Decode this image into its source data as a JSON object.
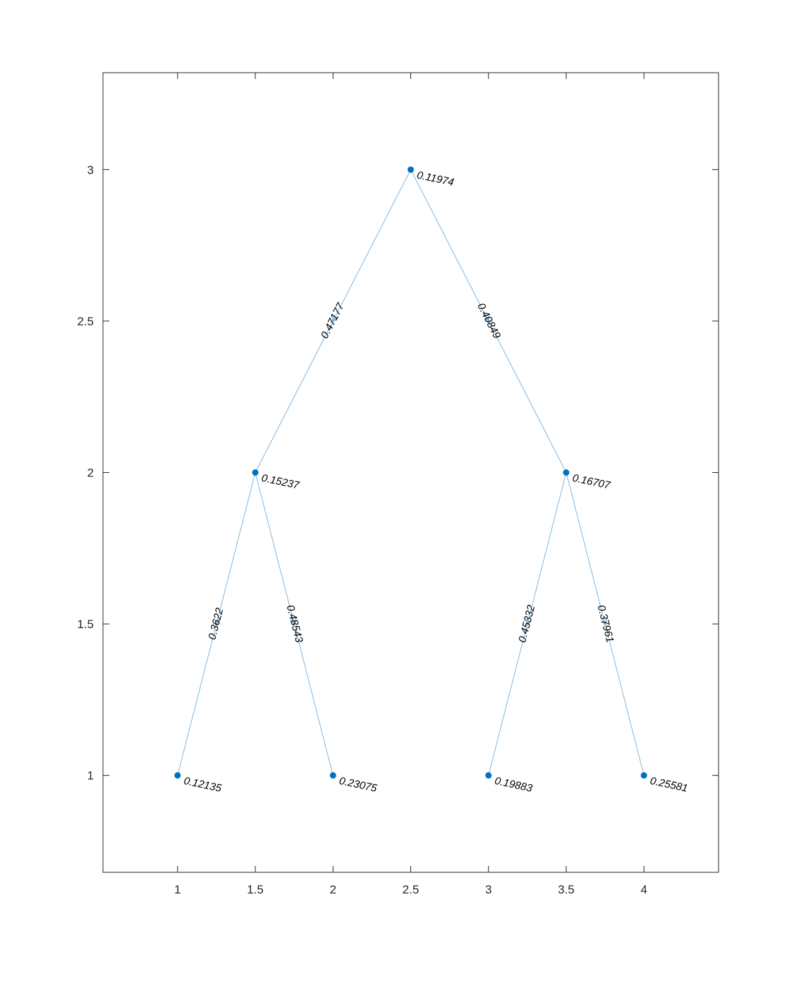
{
  "chart_data": {
    "type": "scatter",
    "title": "",
    "xlabel": "",
    "ylabel": "",
    "xlim": [
      0.52,
      4.48
    ],
    "ylim": [
      0.68,
      3.32
    ],
    "x_ticks": [
      "1",
      "1.5",
      "2",
      "2.5",
      "3",
      "3.5",
      "4"
    ],
    "y_ticks": [
      "1",
      "1.5",
      "2",
      "2.5",
      "3"
    ],
    "grid": false,
    "node_color": "#0072BD",
    "edge_color": "#7EB6E0",
    "nodes": [
      {
        "id": "n1",
        "x": 2.5,
        "y": 3,
        "label": "0.11974"
      },
      {
        "id": "n2",
        "x": 1.5,
        "y": 2,
        "label": "0.15237"
      },
      {
        "id": "n3",
        "x": 3.5,
        "y": 2,
        "label": "0.16707"
      },
      {
        "id": "n4",
        "x": 1,
        "y": 1,
        "label": "0.12135"
      },
      {
        "id": "n5",
        "x": 2,
        "y": 1,
        "label": "0.23075"
      },
      {
        "id": "n6",
        "x": 3,
        "y": 1,
        "label": "0.19883"
      },
      {
        "id": "n7",
        "x": 4,
        "y": 1,
        "label": "0.25581"
      }
    ],
    "edges": [
      {
        "from": "n1",
        "to": "n2",
        "label": "0.47177"
      },
      {
        "from": "n1",
        "to": "n3",
        "label": "0.40849"
      },
      {
        "from": "n2",
        "to": "n4",
        "label": "0.3622"
      },
      {
        "from": "n2",
        "to": "n5",
        "label": "0.48543"
      },
      {
        "from": "n3",
        "to": "n6",
        "label": "0.45332"
      },
      {
        "from": "n3",
        "to": "n7",
        "label": "0.37961"
      }
    ]
  }
}
